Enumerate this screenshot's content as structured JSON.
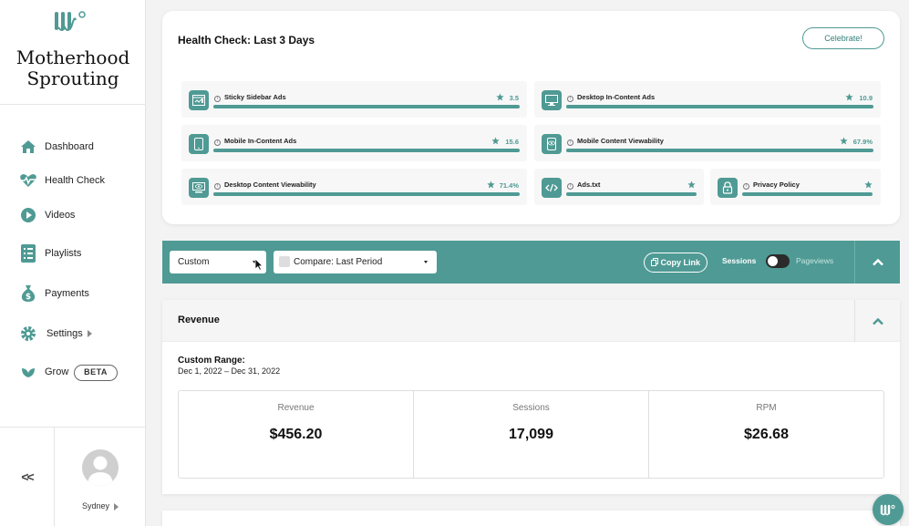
{
  "sidebar": {
    "site_name_line1": "Motherhood",
    "site_name_line2": "Sprouting",
    "items": [
      {
        "label": "Dashboard",
        "icon": "home-icon"
      },
      {
        "label": "Health Check",
        "icon": "heartbeat-icon"
      },
      {
        "label": "Videos",
        "icon": "play-circle-icon"
      },
      {
        "label": "Playlists",
        "icon": "list-icon"
      },
      {
        "label": "Payments",
        "icon": "money-bag-icon"
      },
      {
        "label": "Settings",
        "icon": "gear-icon"
      },
      {
        "label": "Grow",
        "icon": "leaf-icon",
        "badge": "BETA"
      }
    ],
    "collapse_label": "<<",
    "user_name": "Sydney"
  },
  "health": {
    "title": "Health Check: Last 3 Days",
    "celebrate_label": "Celebrate!",
    "checks": [
      {
        "name": "Sticky Sidebar Ads",
        "score": "3.5",
        "icon": "sidebar-ad-icon"
      },
      {
        "name": "Desktop In-Content Ads",
        "score": "10.9",
        "icon": "desktop-icon"
      },
      {
        "name": "Mobile In-Content Ads",
        "score": "15.6",
        "icon": "mobile-icon"
      },
      {
        "name": "Mobile Content Viewability",
        "score": "67.9%",
        "icon": "mobile-eye-icon"
      },
      {
        "name": "Desktop Content Viewability",
        "score": "71.4%",
        "icon": "desktop-eye-icon"
      },
      {
        "name": "Ads.txt",
        "score": "",
        "icon": "code-icon"
      },
      {
        "name": "Privacy Policy",
        "score": "",
        "icon": "lock-icon"
      }
    ]
  },
  "toolbar": {
    "range_value": "Custom",
    "compare_value": "Compare: Last Period",
    "copy_link_label": "Copy Link",
    "sessions_label": "Sessions",
    "pageviews_label": "Pageviews"
  },
  "revenue": {
    "title": "Revenue",
    "range_label": "Custom Range:",
    "range_value": "Dec 1, 2022 – Dec 31, 2022",
    "stats": [
      {
        "label": "Revenue",
        "value": "$456.20"
      },
      {
        "label": "Sessions",
        "value": "17,099"
      },
      {
        "label": "RPM",
        "value": "$26.68"
      }
    ]
  },
  "colors": {
    "accent": "#4f9a94"
  }
}
